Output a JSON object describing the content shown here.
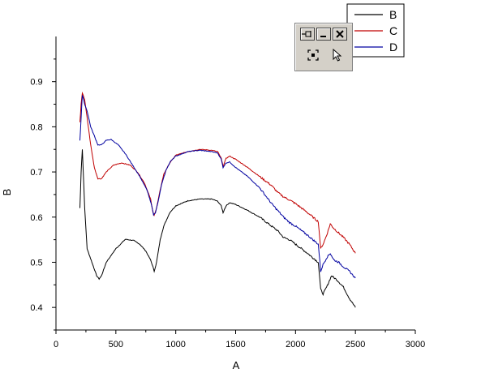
{
  "chart_data": {
    "type": "line",
    "xlabel": "A",
    "ylabel": "B",
    "xlim": [
      0,
      3000
    ],
    "ylim": [
      0.35,
      1.0
    ],
    "x_ticks": [
      "0",
      "500",
      "1000",
      "1500",
      "2000",
      "2500",
      "3000"
    ],
    "y_ticks": [
      "0.4",
      "0.5",
      "0.6",
      "0.7",
      "0.8",
      "0.9"
    ],
    "grid": false,
    "legend_position": "top-right",
    "series": [
      {
        "name": "B",
        "color": "#000000",
        "x": [
          200,
          210,
          220,
          240,
          260,
          300,
          340,
          360,
          380,
          420,
          500,
          580,
          650,
          700,
          750,
          790,
          810,
          820,
          840,
          870,
          900,
          950,
          1000,
          1100,
          1200,
          1300,
          1350,
          1380,
          1395,
          1420,
          1450,
          1500,
          1600,
          1700,
          1800,
          1850,
          1900,
          1950,
          2000,
          2100,
          2190,
          2210,
          2230,
          2260,
          2300,
          2350,
          2400,
          2450,
          2500
        ],
        "y": [
          0.62,
          0.7,
          0.75,
          0.62,
          0.53,
          0.5,
          0.47,
          0.463,
          0.47,
          0.5,
          0.53,
          0.551,
          0.548,
          0.54,
          0.525,
          0.505,
          0.49,
          0.48,
          0.5,
          0.55,
          0.58,
          0.61,
          0.625,
          0.636,
          0.64,
          0.64,
          0.635,
          0.625,
          0.61,
          0.625,
          0.632,
          0.628,
          0.615,
          0.6,
          0.58,
          0.57,
          0.555,
          0.55,
          0.54,
          0.52,
          0.5,
          0.44,
          0.43,
          0.445,
          0.47,
          0.46,
          0.445,
          0.42,
          0.4
        ]
      },
      {
        "name": "C",
        "color": "#c00000",
        "x": [
          200,
          210,
          220,
          240,
          260,
          290,
          320,
          350,
          380,
          420,
          480,
          550,
          620,
          680,
          740,
          790,
          810,
          820,
          840,
          870,
          900,
          950,
          1000,
          1100,
          1200,
          1300,
          1350,
          1380,
          1395,
          1420,
          1450,
          1500,
          1600,
          1700,
          1800,
          1850,
          1900,
          1950,
          2000,
          2100,
          2190,
          2210,
          2230,
          2260,
          2290,
          2320,
          2360,
          2400,
          2450,
          2500
        ],
        "y": [
          0.81,
          0.85,
          0.875,
          0.86,
          0.82,
          0.76,
          0.71,
          0.685,
          0.685,
          0.7,
          0.715,
          0.72,
          0.715,
          0.7,
          0.675,
          0.64,
          0.61,
          0.605,
          0.62,
          0.66,
          0.695,
          0.72,
          0.737,
          0.745,
          0.75,
          0.748,
          0.745,
          0.73,
          0.712,
          0.73,
          0.735,
          0.728,
          0.71,
          0.69,
          0.67,
          0.655,
          0.645,
          0.638,
          0.63,
          0.61,
          0.59,
          0.53,
          0.54,
          0.56,
          0.585,
          0.575,
          0.565,
          0.555,
          0.54,
          0.52
        ]
      },
      {
        "name": "D",
        "color": "#0000a0",
        "x": [
          200,
          210,
          220,
          240,
          260,
          290,
          320,
          350,
          380,
          420,
          460,
          520,
          580,
          640,
          700,
          760,
          800,
          815,
          830,
          850,
          880,
          920,
          960,
          1000,
          1100,
          1200,
          1300,
          1350,
          1380,
          1395,
          1420,
          1450,
          1500,
          1600,
          1700,
          1800,
          1850,
          1900,
          1950,
          2000,
          2100,
          2190,
          2210,
          2230,
          2260,
          2290,
          2320,
          2360,
          2400,
          2450,
          2500
        ],
        "y": [
          0.77,
          0.82,
          0.87,
          0.85,
          0.835,
          0.8,
          0.78,
          0.76,
          0.76,
          0.77,
          0.772,
          0.76,
          0.74,
          0.715,
          0.69,
          0.66,
          0.625,
          0.605,
          0.61,
          0.63,
          0.67,
          0.705,
          0.725,
          0.735,
          0.745,
          0.748,
          0.745,
          0.742,
          0.728,
          0.71,
          0.72,
          0.722,
          0.71,
          0.69,
          0.665,
          0.63,
          0.615,
          0.6,
          0.588,
          0.58,
          0.56,
          0.54,
          0.48,
          0.495,
          0.51,
          0.52,
          0.505,
          0.5,
          0.49,
          0.48,
          0.465
        ]
      }
    ]
  },
  "toolbar": {
    "icons": [
      "pin-icon",
      "minimize-icon",
      "close-icon",
      "fit-frame-icon",
      "pointer-icon"
    ]
  }
}
